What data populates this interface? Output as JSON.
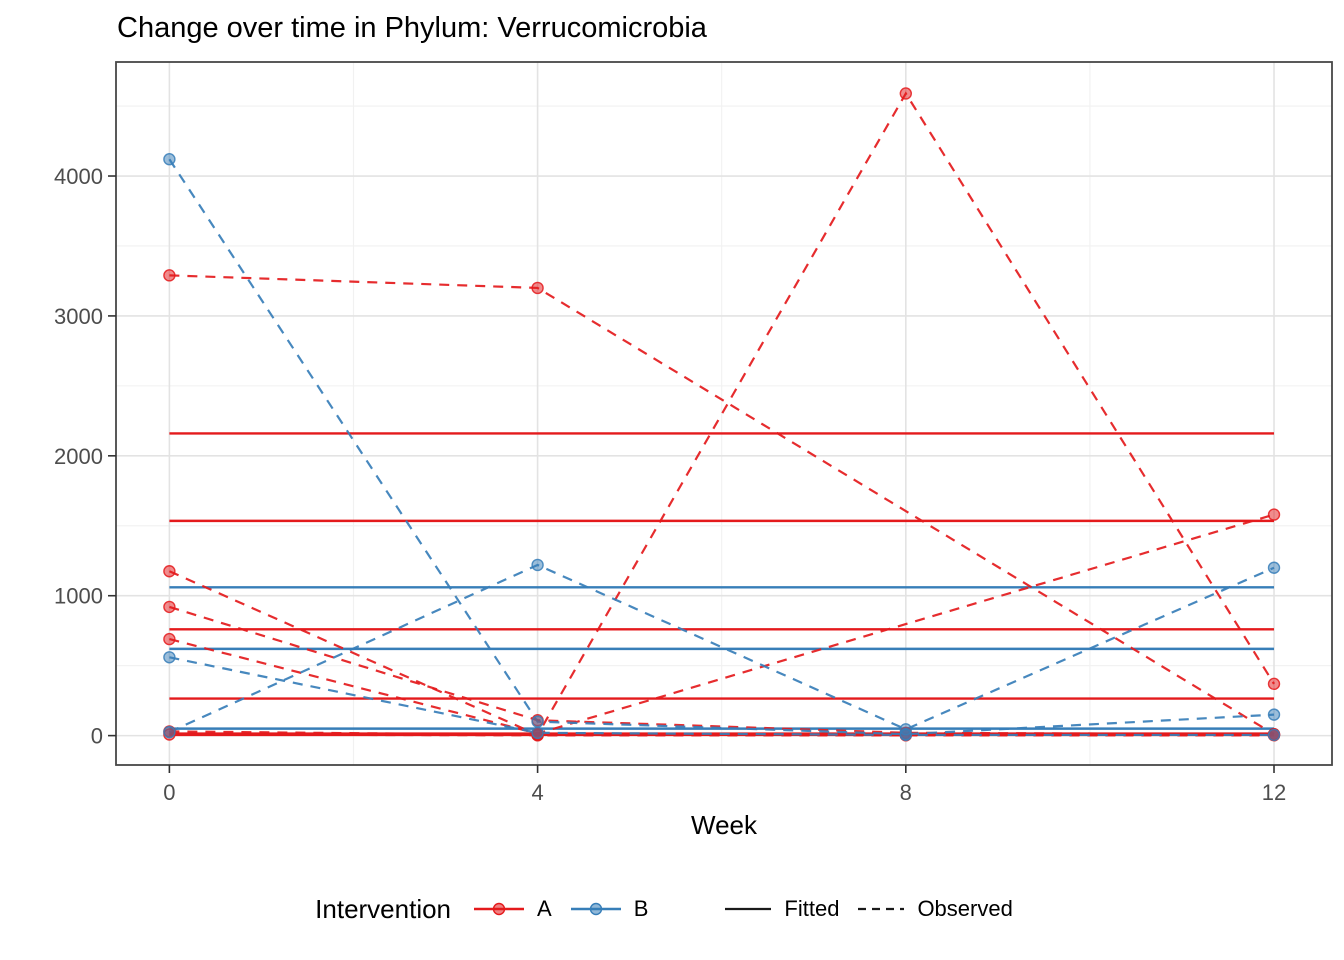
{
  "title": "Change over time in Phylum: Verrucomicrobia",
  "axes": {
    "x": {
      "label": "Week",
      "major_ticks": [
        0,
        4,
        8,
        12
      ],
      "minor_ticks": [
        2,
        6,
        10
      ],
      "lim": [
        -0.58,
        12.63
      ]
    },
    "y": {
      "major_ticks": [
        0,
        1000,
        2000,
        3000,
        4000
      ],
      "minor_ticks": [
        500,
        1500,
        2500,
        3500,
        4500
      ],
      "lim": [
        -210,
        4815
      ]
    }
  },
  "legend": {
    "title": "Intervention",
    "groups": [
      {
        "label": "A",
        "color": "#E41A1C"
      },
      {
        "label": "B",
        "color": "#377EB8"
      }
    ],
    "linetypes": [
      {
        "label": "Fitted",
        "style": "solid"
      },
      {
        "label": "Observed",
        "style": "dashed"
      }
    ]
  },
  "colors": {
    "A": "#E41A1C",
    "B": "#377EB8",
    "legend_key": "#1a1a1a",
    "grid_major": "#E3E3E3",
    "grid_minor": "#F1F1F1",
    "axis_text": "#4D4D4D",
    "panel_border": "#474747",
    "tick": "#333333"
  },
  "chart_data": {
    "type": "line",
    "title": "Change over time in Phylum: Verrucomicrobia",
    "xlabel": "Week",
    "ylabel": "",
    "x_ticks": [
      0,
      4,
      8,
      12
    ],
    "xlim": [
      -0.58,
      12.63
    ],
    "ylim": [
      -210,
      4815
    ],
    "grid": true,
    "legend_position": "bottom",
    "series": [
      {
        "name": "A subject 1 observed",
        "group": "A",
        "style": "observed",
        "x": [
          0,
          4,
          12
        ],
        "y": [
          3290,
          3200,
          10
        ]
      },
      {
        "name": "A subject 2 observed",
        "group": "A",
        "style": "observed",
        "x": [
          0,
          4,
          8,
          12
        ],
        "y": [
          1175,
          5,
          4590,
          370
        ]
      },
      {
        "name": "A subject 3 observed",
        "group": "A",
        "style": "observed",
        "x": [
          0,
          4,
          12
        ],
        "y": [
          690,
          15,
          1580
        ]
      },
      {
        "name": "A subject 4 observed",
        "group": "A",
        "style": "observed",
        "x": [
          0,
          4,
          8,
          12
        ],
        "y": [
          920,
          110,
          20,
          10
        ]
      },
      {
        "name": "A subject 5 observed",
        "group": "A",
        "style": "observed",
        "x": [
          0,
          4,
          8,
          12
        ],
        "y": [
          30,
          5,
          5,
          5
        ]
      },
      {
        "name": "A subject 6 observed",
        "group": "A",
        "style": "observed",
        "x": [
          0,
          4,
          8,
          12
        ],
        "y": [
          8,
          2,
          2,
          2
        ]
      },
      {
        "name": "B subject 1 observed",
        "group": "B",
        "style": "observed",
        "x": [
          0,
          4,
          8,
          12
        ],
        "y": [
          4120,
          100,
          10,
          150
        ]
      },
      {
        "name": "B subject 2 observed",
        "group": "B",
        "style": "observed",
        "x": [
          0,
          4,
          8,
          12
        ],
        "y": [
          25,
          1220,
          45,
          1200
        ]
      },
      {
        "name": "B subject 3 observed",
        "group": "B",
        "style": "observed",
        "x": [
          0,
          4,
          8,
          12
        ],
        "y": [
          560,
          20,
          5,
          5
        ]
      },
      {
        "name": "A subject 1 fitted",
        "group": "A",
        "style": "fitted",
        "value": 2160
      },
      {
        "name": "A subject 2 fitted",
        "group": "A",
        "style": "fitted",
        "value": 1535
      },
      {
        "name": "A subject 3 fitted",
        "group": "A",
        "style": "fitted",
        "value": 760
      },
      {
        "name": "A subject 4 fitted",
        "group": "A",
        "style": "fitted",
        "value": 265
      },
      {
        "name": "A subject 5 fitted",
        "group": "A",
        "style": "fitted",
        "value": 15
      },
      {
        "name": "A subject 6 fitted",
        "group": "A",
        "style": "fitted",
        "value": 5
      },
      {
        "name": "B subject 1 fitted",
        "group": "B",
        "style": "fitted",
        "value": 1060
      },
      {
        "name": "B subject 2 fitted",
        "group": "B",
        "style": "fitted",
        "value": 620
      },
      {
        "name": "B subject 3 fitted",
        "group": "B",
        "style": "fitted",
        "value": 50
      }
    ]
  }
}
